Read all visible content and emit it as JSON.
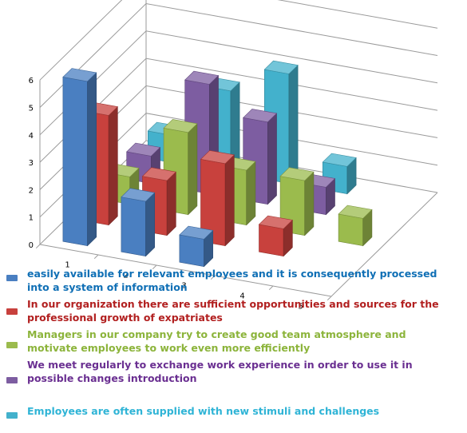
{
  "chart_data": {
    "type": "bar",
    "subtype": "3d-column",
    "title": "",
    "xlabel": "",
    "ylabel": "",
    "categories": [
      "1",
      "2",
      "3",
      "4",
      "5"
    ],
    "ylim": [
      0,
      6
    ],
    "yticks": [
      "0",
      "1",
      "2",
      "3",
      "4",
      "5",
      "6"
    ],
    "grid": true,
    "legend_position": "bottom",
    "series": [
      {
        "name": "easily available for relevant employees and it is consequently processed into a system of information",
        "color": "#4a7fc1",
        "values": [
          6,
          2,
          1,
          0,
          0
        ]
      },
      {
        "name": "In our organization there are sufficient opportunities and sources for the professional growth of  expatriates",
        "color": "#c8413d",
        "values": [
          4,
          2,
          3,
          1,
          0
        ]
      },
      {
        "name": "Managers in our company try to create good team atmosphere and motivate employees to work even more efficiently",
        "color": "#9bbb4d",
        "values": [
          1,
          3,
          2,
          2,
          1
        ]
      },
      {
        "name": "We meet regularly to exchange work experience in order to use it in possible changes introduction",
        "color": "#7d5da1",
        "values": [
          1,
          4,
          3,
          1,
          0
        ]
      },
      {
        "name": "Employees are often supplied with new stimuli and challenges",
        "color": "#43b1cc",
        "values": [
          1,
          3,
          4,
          1,
          0
        ]
      }
    ]
  },
  "legend_colors": [
    "#0f6fb5",
    "#b22020",
    "#8cb43b",
    "#6a2f91",
    "#2fb4d6"
  ]
}
